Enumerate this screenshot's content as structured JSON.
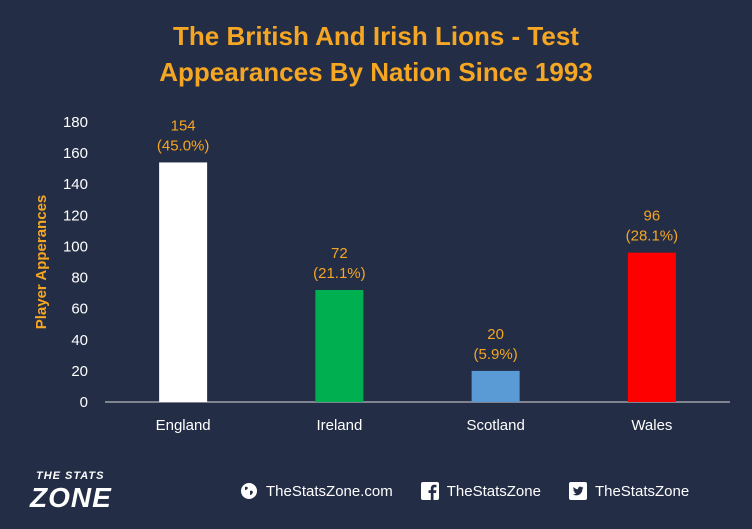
{
  "title_line1": "The British And Irish Lions - Test",
  "title_line2": "Appearances By Nation Since 1993",
  "chart_data": {
    "type": "bar",
    "title": "The British And Irish Lions - Test Appearances By Nation Since 1993",
    "ylabel": "Player Apperances",
    "xlabel": "",
    "ylim": [
      0,
      180
    ],
    "yticks": [
      0,
      20,
      40,
      60,
      80,
      100,
      120,
      140,
      160,
      180
    ],
    "categories": [
      "England",
      "Ireland",
      "Scotland",
      "Wales"
    ],
    "values": [
      154,
      72,
      20,
      96
    ],
    "percent_labels": [
      "(45.0%)",
      "(21.1%)",
      "(5.9%)",
      "(28.1%)"
    ],
    "colors": [
      "#ffffff",
      "#00b050",
      "#5b9bd5",
      "#ff0000"
    ],
    "grid": false,
    "legend": "none"
  },
  "footer": {
    "logo_top": "THE STATS",
    "logo_main": "ZONE",
    "links": [
      {
        "icon": "globe-icon",
        "text": "TheStatsZone.com"
      },
      {
        "icon": "facebook-icon",
        "text": "TheStatsZone"
      },
      {
        "icon": "twitter-icon",
        "text": "TheStatsZone"
      }
    ]
  }
}
